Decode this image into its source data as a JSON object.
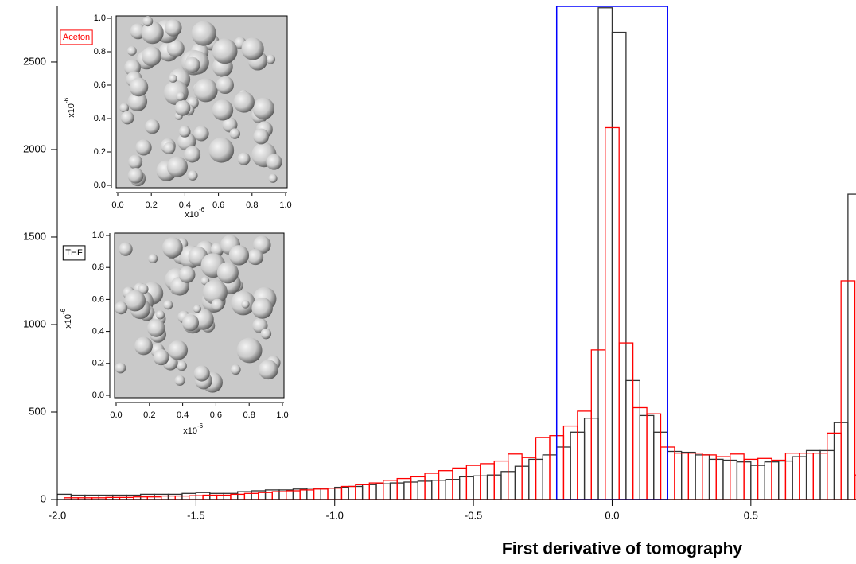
{
  "chart_data": {
    "type": "histogram",
    "x_label": "First derivative of tomography",
    "xlim": [
      -2.0,
      0.879
    ],
    "ylim": [
      0,
      2818
    ],
    "xticks": [
      {
        "value": -2.0,
        "label": "-2.0"
      },
      {
        "value": -1.5,
        "label": "-1.5"
      },
      {
        "value": -1.0,
        "label": "-1.0"
      },
      {
        "value": -0.5,
        "label": "-0.5"
      },
      {
        "value": 0.0,
        "label": "0.0"
      },
      {
        "value": 0.5,
        "label": "0.5"
      }
    ],
    "yticks": [
      0,
      500,
      1000,
      1500,
      2000,
      2500
    ],
    "series": [
      {
        "name": "THF",
        "color": "#333333",
        "bins": [
          -2.0,
          -1.95,
          -1.9,
          -1.85,
          -1.8,
          -1.75,
          -1.7,
          -1.65,
          -1.6,
          -1.55,
          -1.5,
          -1.45,
          -1.4,
          -1.35,
          -1.3,
          -1.25,
          -1.2,
          -1.15,
          -1.1,
          -1.05,
          -1.0,
          -0.95,
          -0.9,
          -0.85,
          -0.8,
          -0.75,
          -0.7,
          -0.65,
          -0.6,
          -0.55,
          -0.5,
          -0.45,
          -0.4,
          -0.35,
          -0.3,
          -0.25,
          -0.2,
          -0.15,
          -0.1,
          -0.05,
          0.0,
          0.05,
          0.1,
          0.15,
          0.2,
          0.25,
          0.3,
          0.35,
          0.4,
          0.45,
          0.5,
          0.55,
          0.6,
          0.65,
          0.7,
          0.75,
          0.8,
          0.85,
          0.9
        ],
        "values": [
          30,
          25,
          25,
          25,
          25,
          25,
          30,
          30,
          30,
          35,
          40,
          35,
          35,
          45,
          50,
          55,
          55,
          60,
          65,
          65,
          70,
          75,
          85,
          90,
          95,
          100,
          105,
          110,
          115,
          130,
          135,
          140,
          160,
          190,
          230,
          255,
          300,
          385,
          465,
          2810,
          2670,
          680,
          480,
          385,
          275,
          270,
          255,
          230,
          225,
          215,
          195,
          215,
          220,
          245,
          280,
          280,
          440,
          1745
        ]
      },
      {
        "name": "Aceton",
        "color": "#ff0000",
        "bins": [
          -1.975,
          -1.925,
          -1.875,
          -1.825,
          -1.775,
          -1.725,
          -1.675,
          -1.625,
          -1.575,
          -1.525,
          -1.475,
          -1.425,
          -1.375,
          -1.325,
          -1.275,
          -1.225,
          -1.175,
          -1.125,
          -1.075,
          -1.025,
          -0.975,
          -0.925,
          -0.875,
          -0.825,
          -0.775,
          -0.725,
          -0.675,
          -0.625,
          -0.575,
          -0.525,
          -0.475,
          -0.425,
          -0.375,
          -0.325,
          -0.275,
          -0.225,
          -0.175,
          -0.125,
          -0.075,
          -0.025,
          0.025,
          0.075,
          0.125,
          0.175,
          0.225,
          0.275,
          0.325,
          0.375,
          0.425,
          0.475,
          0.525,
          0.575,
          0.625,
          0.675,
          0.725,
          0.775,
          0.825,
          0.875,
          0.925
        ],
        "values": [
          10,
          10,
          10,
          12,
          12,
          15,
          15,
          20,
          20,
          22,
          25,
          25,
          30,
          35,
          40,
          45,
          50,
          55,
          60,
          65,
          75,
          85,
          95,
          110,
          120,
          130,
          150,
          165,
          180,
          195,
          205,
          220,
          260,
          240,
          355,
          365,
          420,
          505,
          855,
          2125,
          895,
          525,
          490,
          300,
          265,
          265,
          255,
          245,
          260,
          230,
          235,
          225,
          265,
          265,
          265,
          380,
          1250,
          140
        ]
      }
    ],
    "highlight": {
      "x": [
        -0.2,
        0.2
      ],
      "color": "#0000ff"
    },
    "insets": [
      {
        "label": "Aceton",
        "label_color": "#ff0000",
        "xlim": [
          0,
          1.0
        ],
        "ylim": [
          0,
          1.0
        ],
        "ticks": [
          {
            "value": 0,
            "label": "0.0"
          },
          {
            "value": 0.2,
            "label": "0.2"
          },
          {
            "value": 0.4,
            "label": "0.4"
          },
          {
            "value": 0.6,
            "label": "0.6"
          },
          {
            "value": 0.8,
            "label": "0.8"
          },
          {
            "value": 1.0,
            "label": "1.0"
          }
        ],
        "scale_base": "x10",
        "scale_exponent": "-6"
      },
      {
        "label": "THF",
        "label_color": "#000000",
        "xlim": [
          0,
          1.0
        ],
        "ylim": [
          0,
          1.0
        ],
        "ticks": [
          {
            "value": 0,
            "label": "0.0"
          },
          {
            "value": 0.2,
            "label": "0.2"
          },
          {
            "value": 0.4,
            "label": "0.4"
          },
          {
            "value": 0.6,
            "label": "0.6"
          },
          {
            "value": 0.8,
            "label": "0.8"
          },
          {
            "value": 1.0,
            "label": "1.0"
          }
        ],
        "scale_base": "x10",
        "scale_exponent": "-6"
      }
    ]
  }
}
